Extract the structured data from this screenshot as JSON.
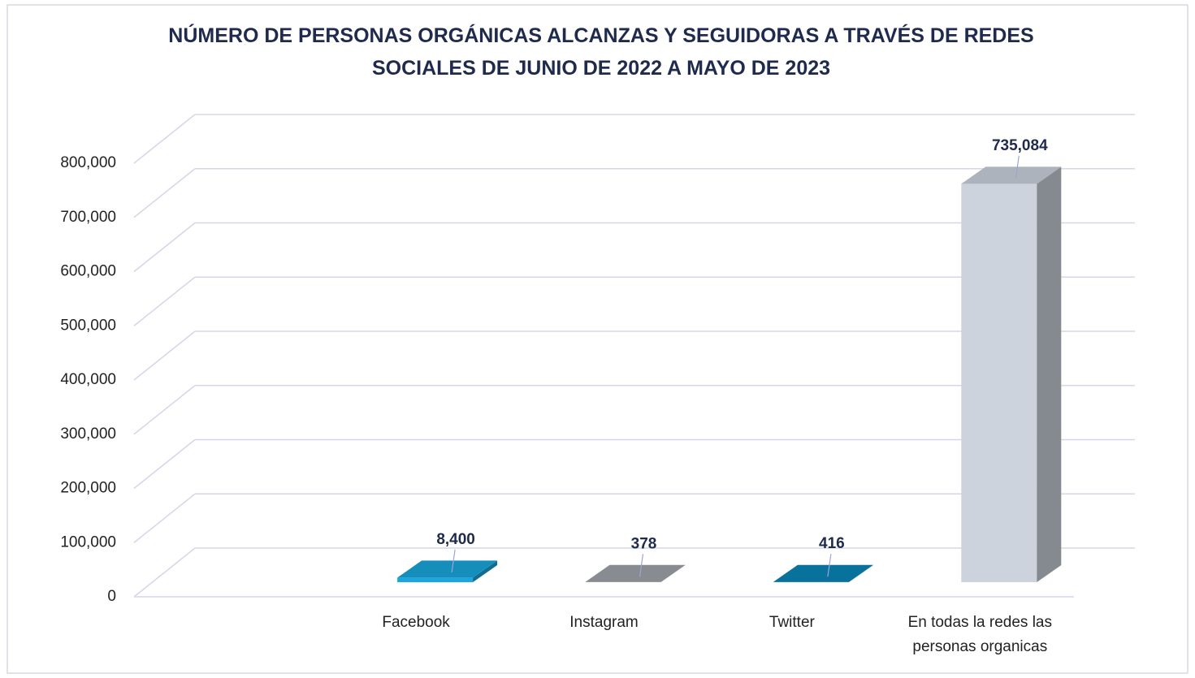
{
  "chart_data": {
    "type": "bar3d",
    "title": "NÚMERO DE PERSONAS ORGÁNICAS ALCANZAS Y SEGUIDORAS A TRAVÉS DE REDES SOCIALES DE JUNIO DE 2022 A MAYO DE 2023",
    "categories": [
      null,
      "Facebook",
      "Instagram",
      "Twitter",
      "En todas la redes las personas organicas"
    ],
    "values": [
      null,
      8400,
      378,
      416,
      735084
    ],
    "value_labels": [
      null,
      "8,400",
      "378",
      "416",
      "735,084"
    ],
    "colors": [
      null,
      "#1aa7dd",
      "#a0a4a9",
      "#0a86b8",
      "#ccd3dd"
    ],
    "ylim": [
      0,
      800000
    ],
    "yticks": [
      0,
      {
        "value": 100000,
        "label": "100,000"
      },
      {
        "value": 200000,
        "label": "200,000"
      },
      {
        "value": 300000,
        "label": "300,000"
      },
      {
        "value": 400000,
        "label": "400,000"
      },
      {
        "value": 500000,
        "label": "500,000"
      },
      {
        "value": 600000,
        "label": "600,000"
      },
      {
        "value": 700000,
        "label": "700,000"
      },
      {
        "value": 800000,
        "label": "800,000"
      }
    ],
    "grid": true
  }
}
